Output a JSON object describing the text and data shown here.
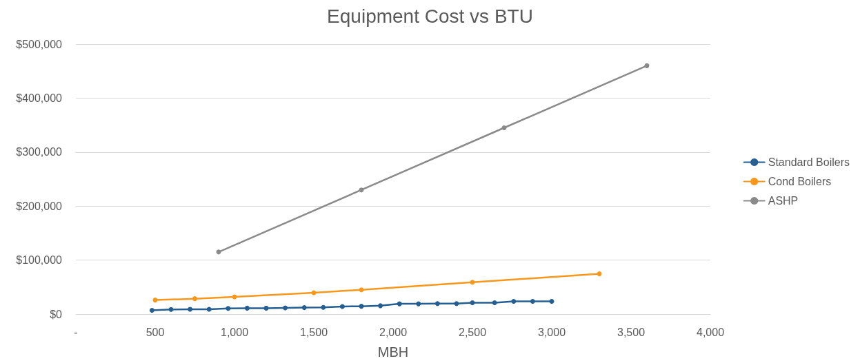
{
  "chart_data": {
    "type": "line",
    "title": "Equipment Cost vs BTU",
    "xlabel": "MBH",
    "xlim": [
      0,
      4000
    ],
    "xticks": [
      {
        "value": 0,
        "label": "-"
      },
      500,
      {
        "value": 1000,
        "label": "1,000"
      },
      {
        "value": 1500,
        "label": "1,500"
      },
      {
        "value": 2000,
        "label": "2,000"
      },
      {
        "value": 2500,
        "label": "2,500"
      },
      {
        "value": 3000,
        "label": "3,000"
      },
      {
        "value": 3500,
        "label": "3,500"
      },
      {
        "value": 4000,
        "label": "4,000"
      }
    ],
    "ylim": [
      0,
      500000
    ],
    "yticks": [
      {
        "value": 0,
        "label": "$0"
      },
      {
        "value": 100000,
        "label": "$100,000"
      },
      {
        "value": 200000,
        "label": "$200,000"
      },
      {
        "value": 300000,
        "label": "$300,000"
      },
      {
        "value": 400000,
        "label": "$400,000"
      },
      {
        "value": 500000,
        "label": "$500,000"
      }
    ],
    "grid": "y",
    "legend": "right",
    "marker": "circle",
    "line_style": "solid",
    "series": [
      {
        "name": "Standard Boilers",
        "color": "#255e91",
        "x": [
          480,
          600,
          720,
          840,
          960,
          1080,
          1200,
          1320,
          1440,
          1560,
          1680,
          1800,
          1920,
          2040,
          2160,
          2280,
          2400,
          2500,
          2640,
          2760,
          2880,
          3000
        ],
        "values": [
          7000,
          8500,
          9000,
          9000,
          10500,
          11000,
          11000,
          11500,
          12000,
          12500,
          14000,
          14500,
          15500,
          19000,
          19000,
          19500,
          19500,
          21000,
          21000,
          23500,
          23500,
          23500
        ]
      },
      {
        "name": "Cond Boilers",
        "color": "#f7981d",
        "x": [
          500,
          750,
          1000,
          1500,
          1800,
          2500,
          3300
        ],
        "values": [
          26000,
          28500,
          32000,
          39500,
          45000,
          59000,
          74500
        ]
      },
      {
        "name": "ASHP",
        "color": "#8a8a8a",
        "x": [
          900,
          1800,
          2700,
          3600
        ],
        "values": [
          115000,
          230000,
          345000,
          460000
        ]
      }
    ]
  }
}
